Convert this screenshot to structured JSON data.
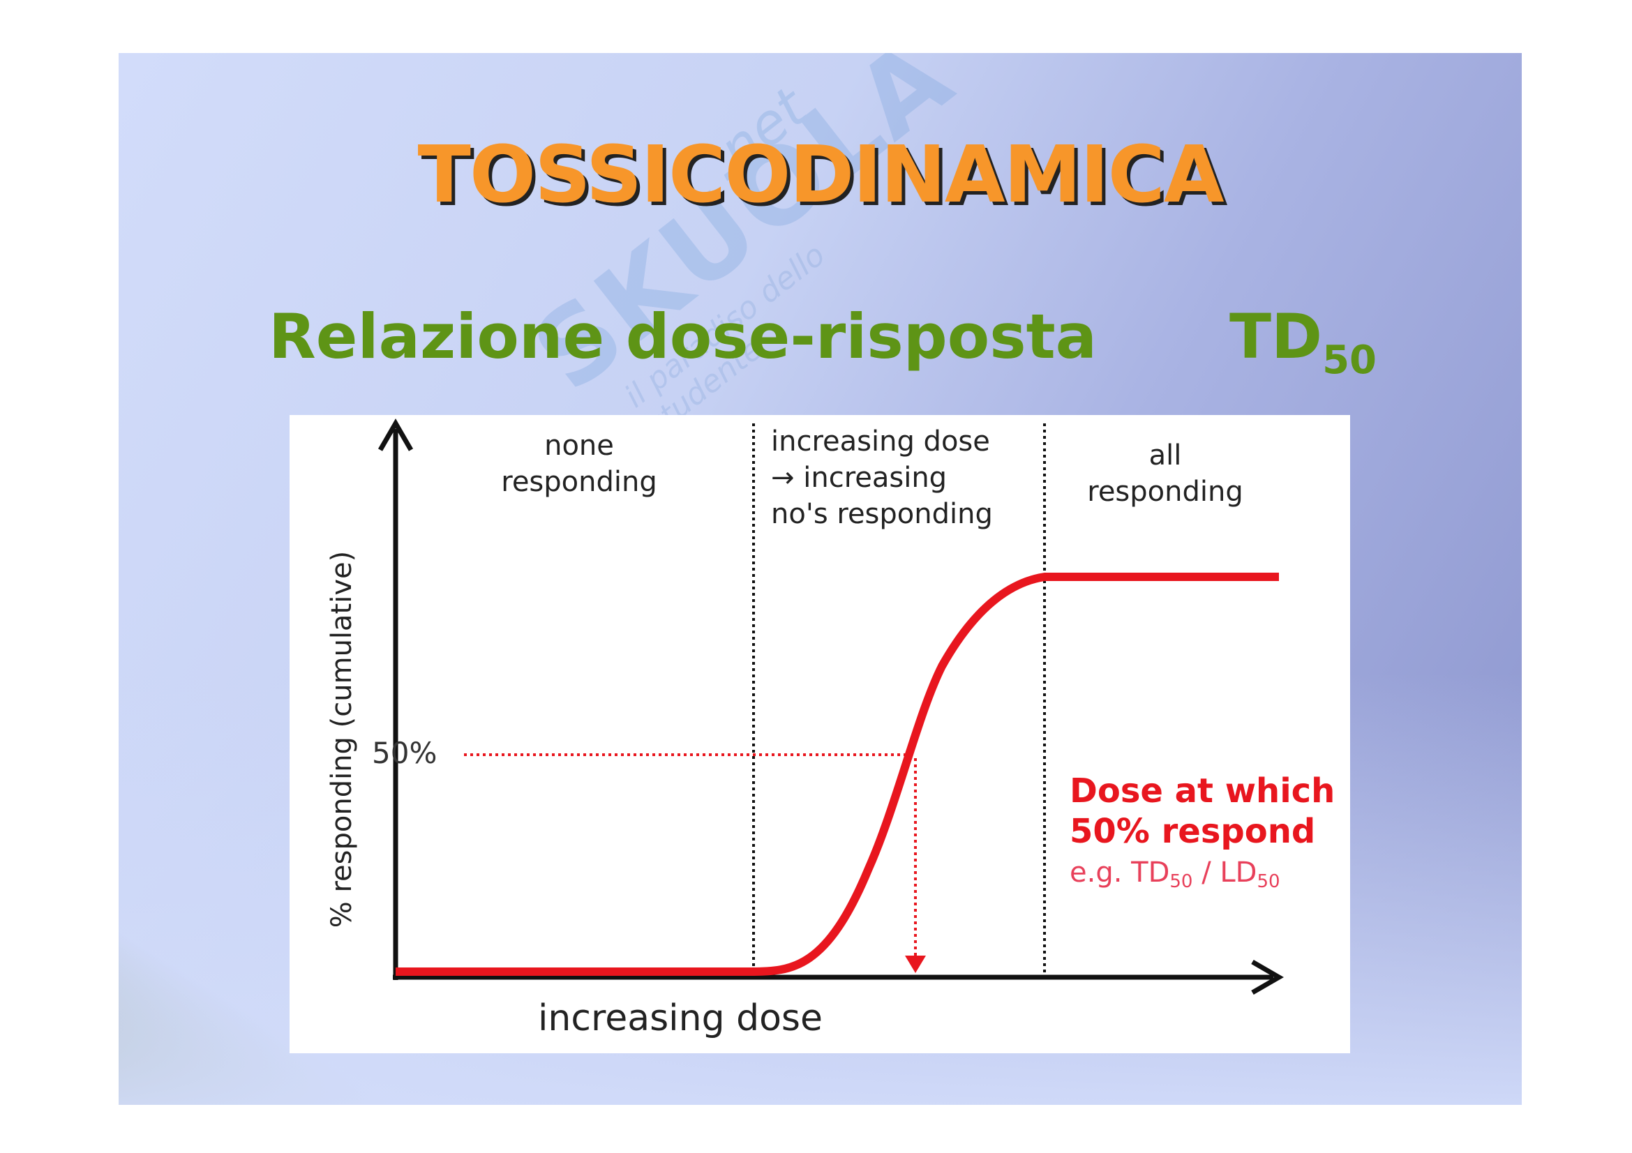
{
  "slide": {
    "title": "TOSSICODINAMICA",
    "subtitle": "Relazione dose-risposta",
    "td_label": "TD",
    "td_sub": "50",
    "watermark": {
      "main": "SKUOLA",
      "net": ".net",
      "tagline": "il paradiso dello studente"
    },
    "colors": {
      "title": "#f7962a",
      "subtitle": "#5e9416",
      "curve": "#e8161e"
    }
  },
  "diagram": {
    "regions": {
      "none": [
        "none",
        "responding"
      ],
      "increasing": [
        "increasing dose",
        "→ increasing",
        "no's responding"
      ],
      "all": [
        "all",
        "responding"
      ]
    },
    "y_axis_label": "% responding (cumulative)",
    "x_axis_label": "increasing dose",
    "fifty_label": "50%",
    "note": {
      "line1": "Dose at which",
      "line2": "50% respond",
      "line3_prefix": "e.g. TD",
      "line3_sub1": "50",
      "line3_mid": " / LD",
      "line3_sub2": "50"
    }
  }
}
